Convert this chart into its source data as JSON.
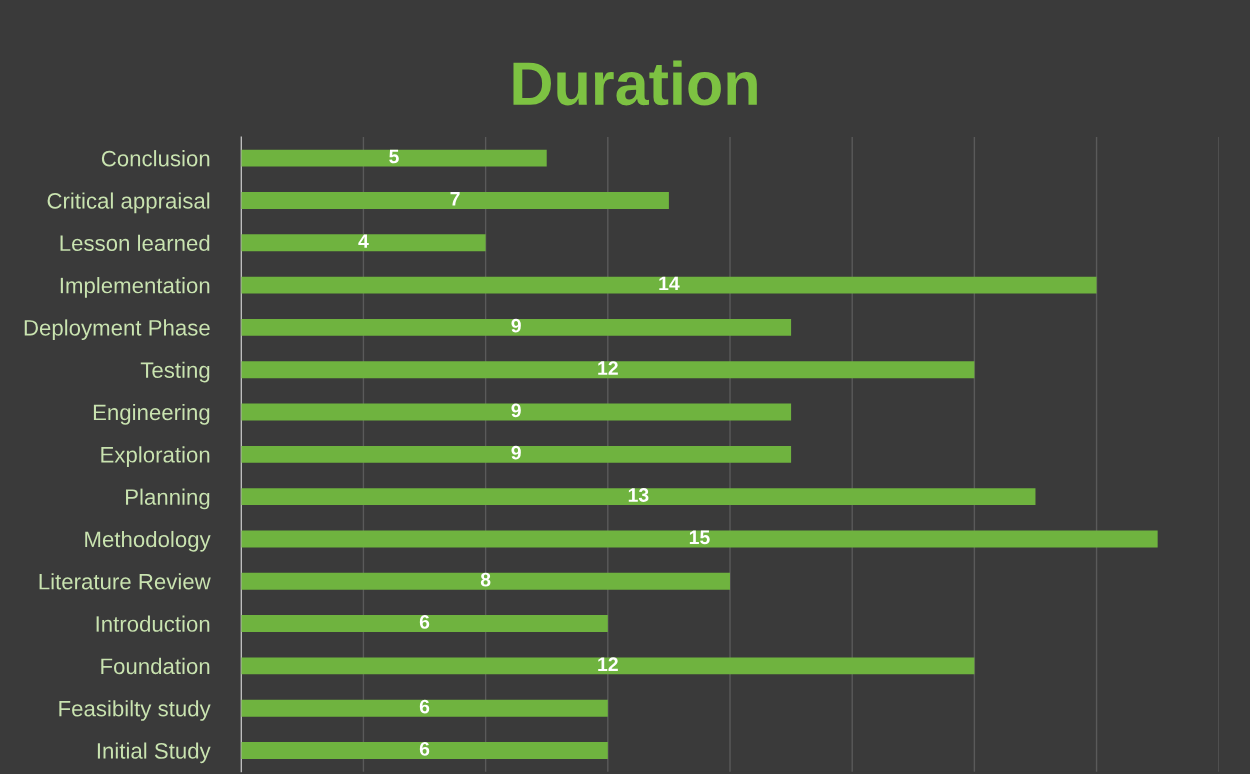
{
  "chart_data": {
    "type": "bar",
    "orientation": "horizontal",
    "title": "Duration",
    "categories": [
      "Conclusion",
      "Critical appraisal",
      "Lesson learned",
      "Implementation",
      "Deployment Phase",
      "Testing",
      "Engineering",
      "Exploration",
      "Planning",
      "Methodology",
      "Literature Review",
      "Introduction",
      "Foundation",
      "Feasibilty study",
      "Initial Study"
    ],
    "values": [
      5,
      7,
      4,
      14,
      9,
      12,
      9,
      9,
      13,
      15,
      8,
      6,
      12,
      6,
      6
    ],
    "color": "#6fb33f",
    "xlim": [
      0,
      16
    ],
    "xticks": [
      {
        "value": 0,
        "label": null
      },
      {
        "value": 2,
        "label": null
      },
      {
        "value": 4,
        "label": null
      },
      {
        "value": 6,
        "label": null
      },
      {
        "value": 8,
        "label": null
      },
      {
        "value": 10,
        "label": null
      },
      {
        "value": 12,
        "label": null
      },
      {
        "value": 14,
        "label": null
      },
      {
        "value": 16,
        "label": null
      }
    ],
    "grid": "x",
    "data_labels": true,
    "legend": false
  }
}
